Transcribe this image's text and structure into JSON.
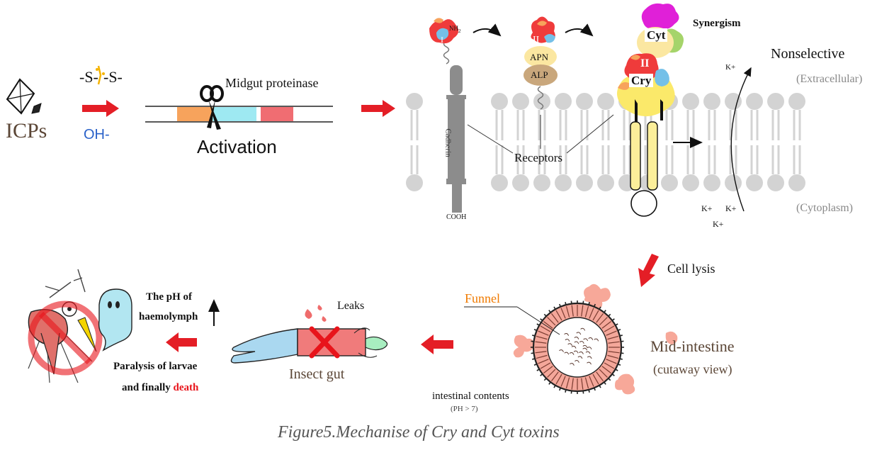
{
  "labels": {
    "icps": "ICPs",
    "disulfide": "-S-",
    "disulfide_right": "-S-",
    "oh": "OH-",
    "midgut_proteinase": "Midgut proteinase",
    "activation": "Activation",
    "nh2": "NH",
    "nh2_sub": "2",
    "domain_one": "I",
    "domain_two_a": "II",
    "domain_two_b": "II",
    "apn": "APN",
    "alp": "ALP",
    "cadherin": "Cadherin",
    "cooh": "COOH",
    "receptors": "Receptors",
    "cyt": "Cyt",
    "cry": "Cry",
    "synergism": "Synergism",
    "nonselective": "Nonselective",
    "extracellular": "(Extracellular)",
    "cytoplasm": "(Cytoplasm)",
    "k_plus_1": "K+",
    "k_plus_2": "K+",
    "k_plus_3": "K+",
    "k_plus_4": "K+",
    "cell_lysis": "Cell lysis",
    "funnel": "Funnel",
    "mid_intestine": "Mid-intestine",
    "cutaway_view": "(cutaway view)",
    "intestinal_contents": "intestinal contents",
    "ph_note": "(PH > 7)",
    "leaks": "Leaks",
    "insect_gut": "Insect gut",
    "ph_haemolymph_1": "The pH of",
    "ph_haemolymph_2": "haemolymph",
    "paralysis_1": "Paralysis of larvae",
    "paralysis_2a": "and finally ",
    "paralysis_2b": "death",
    "caption": "Figure5.Mechanise of Cry and Cyt toxins"
  },
  "colors": {
    "red_arrow": "#e41e26",
    "oh_blue": "#2a62c9",
    "funnel_orange": "#f07a00",
    "death_red": "#e8141b",
    "membrane_grey": "#d3d3d3",
    "cadherin_grey": "#8c8c8c",
    "apn_yellow": "#fbe7a1",
    "alp_brown": "#c9a77c",
    "cry_yellow": "#fbe96a",
    "cyt_magenta": "#e020d8",
    "toxin_pink": "#f4a79a",
    "caption_grey": "#555555",
    "brown_text": "#5b4636"
  },
  "icons": [
    "crystal-icon",
    "scissors-icon",
    "mosquito-icon",
    "prohibition-icon",
    "ghost-icon",
    "insect-gut-icon",
    "intestine-cross-section-icon"
  ]
}
